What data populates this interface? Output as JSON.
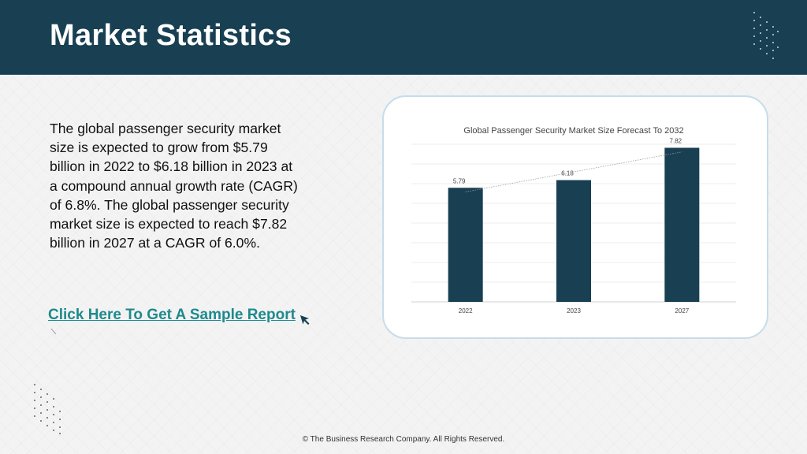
{
  "header": {
    "title": "Market Statistics"
  },
  "body": {
    "paragraph": "The global passenger security market size is expected to grow from $5.79 billion in 2022 to $6.18 billion in 2023 at a compound annual growth rate (CAGR) of 6.8%. The global passenger security market size is expected to reach $7.82 billion in 2027 at a CAGR of 6.0%.",
    "cta_label": "Click Here To Get A Sample Report"
  },
  "footer": {
    "copyright": "© The Business Research Company. All Rights Reserved."
  },
  "icons": {
    "cursor": "mouse-pointer-icon",
    "decor": "dot-grid"
  },
  "colors": {
    "header_bg": "#183f52",
    "bar": "#183f52",
    "link": "#1e8a8d",
    "card_border": "#c7dcea"
  },
  "chart_data": {
    "type": "bar",
    "title": "Global Passenger Security Market Size Forecast To 2032",
    "categories": [
      "2022",
      "2023",
      "2027"
    ],
    "values": [
      5.79,
      6.18,
      7.82
    ],
    "value_labels": [
      "5.79",
      "6.18",
      "7.82"
    ],
    "trendline": "linear",
    "ylim": [
      0,
      8
    ],
    "grid": true,
    "xlabel": "",
    "ylabel": ""
  }
}
